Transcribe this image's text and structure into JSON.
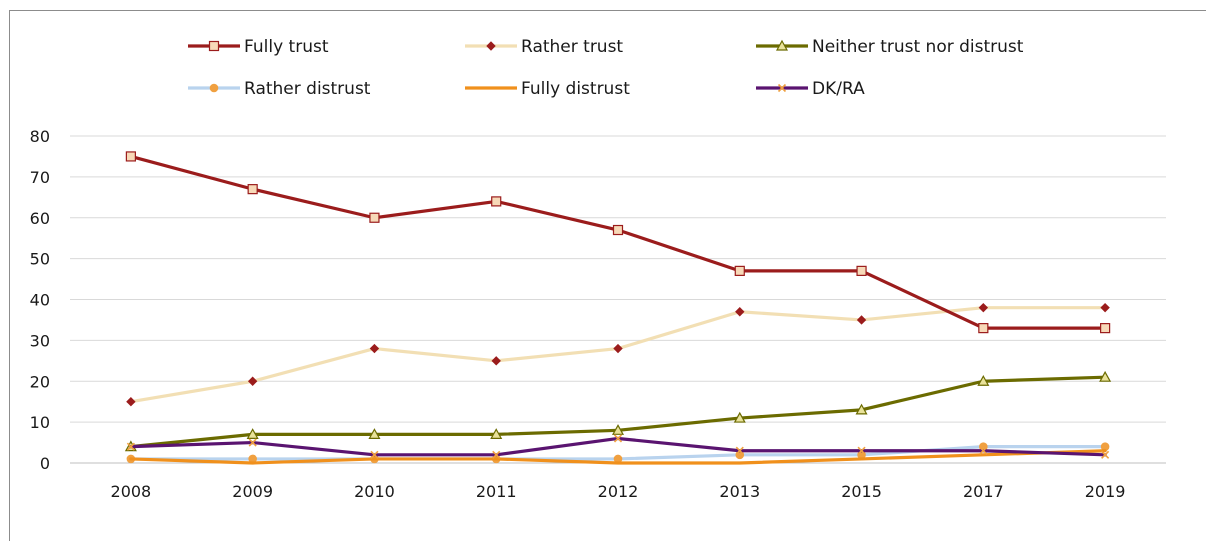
{
  "chart_data": {
    "type": "line",
    "title": "",
    "xlabel": "",
    "ylabel": "",
    "categories": [
      "2008",
      "2009",
      "2010",
      "2011",
      "2012",
      "2013",
      "2015",
      "2017",
      "2019"
    ],
    "ylim": [
      0,
      80
    ],
    "yticks": [
      "0",
      "10",
      "20",
      "30",
      "40",
      "50",
      "60",
      "70",
      "80"
    ],
    "grid": "horizontal",
    "legend_position": "top",
    "series": [
      {
        "name": "Fully trust",
        "color": "#9b1c1c",
        "marker": "square",
        "marker_fill": "#f7d9b8",
        "values": [
          75,
          67,
          60,
          64,
          57,
          47,
          47,
          33,
          33
        ]
      },
      {
        "name": "Rather trust",
        "color": "#f2dfb4",
        "marker": "diamond",
        "marker_fill": "#9b1c1c",
        "values": [
          15,
          20,
          28,
          25,
          28,
          37,
          35,
          38,
          38
        ]
      },
      {
        "name": "Neither trust nor distrust",
        "color": "#6b6b00",
        "marker": "triangle",
        "marker_fill": "#e9e29a",
        "values": [
          4,
          7,
          7,
          7,
          8,
          11,
          13,
          20,
          21
        ]
      },
      {
        "name": "Rather distrust",
        "color": "#b9d3ee",
        "marker": "circle",
        "marker_fill": "#f0a040",
        "values": [
          1,
          1,
          1,
          1,
          1,
          2,
          2,
          4,
          4
        ]
      },
      {
        "name": "Fully distrust",
        "color": "#f0901c",
        "marker": "none",
        "marker_fill": "#f0901c",
        "values": [
          1,
          0,
          1,
          1,
          0,
          0,
          1,
          2,
          3
        ]
      },
      {
        "name": "DK/RA",
        "color": "#5a1470",
        "marker": "x",
        "marker_fill": "#f0a040",
        "values": [
          4,
          5,
          2,
          2,
          6,
          3,
          3,
          3,
          2
        ]
      }
    ]
  }
}
